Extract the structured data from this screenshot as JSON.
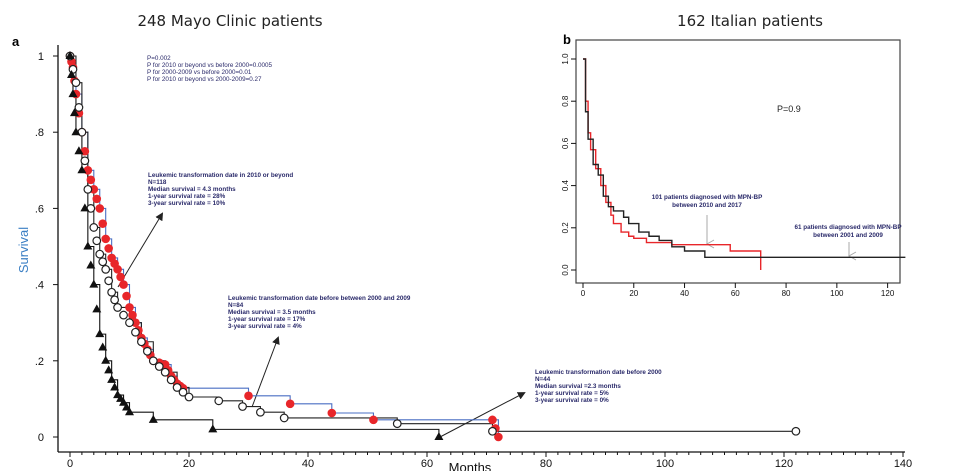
{
  "chart_data": [
    {
      "type": "line",
      "panel_label": "a",
      "title": "248 Mayo Clinic patients",
      "xlabel": "Months",
      "ylabel": "Survival",
      "xlim": [
        0,
        140
      ],
      "ylim": [
        0,
        1
      ],
      "x_ticks": [
        "0",
        "20",
        "40",
        "60",
        "80",
        "100",
        "120",
        "140"
      ],
      "y_ticks": [
        "0",
        ".2",
        ".4",
        ".6",
        ".8",
        "1"
      ],
      "grid": false,
      "pvalues": [
        "P=0.002",
        "P for 2010 or beyond vs before 2000=0.0005",
        "P for 2000-2009 vs before 2000=0.01",
        "P for 2010 or beyond vs 2000-2009=0.27"
      ],
      "annotations": [
        {
          "lines": [
            "Leukemic transformation date in 2010 or beyond",
            "N=118",
            "Median survival = 4.3 months",
            "1-year survival rate = 28%",
            "3-year survival rate = 10%"
          ]
        },
        {
          "lines": [
            "Leukemic transformation date before between 2000 and 2009",
            "N=84",
            "Median survival = 3.5 months",
            "1-year survival rate = 17%",
            "3-year survival rate = 4%"
          ]
        },
        {
          "lines": [
            "Leukemic transformation date before 2000",
            "N=44",
            "Median survival =2.3 months",
            "1-year survival rate = 5%",
            "3-year survival rate = 0%"
          ]
        }
      ],
      "series": [
        {
          "color": "#e8262a",
          "line_color": "#4a6fc4",
          "marker": "filled-circle",
          "x": [
            0,
            0.5,
            1,
            2,
            3,
            4,
            5,
            6,
            7,
            8,
            9,
            10,
            11,
            12,
            13,
            14,
            16,
            17,
            18,
            19,
            30,
            37,
            44,
            51,
            71,
            72
          ],
          "y": [
            1,
            0.97,
            0.9,
            0.8,
            0.7,
            0.65,
            0.6,
            0.52,
            0.47,
            0.44,
            0.4,
            0.34,
            0.3,
            0.26,
            0.23,
            0.2,
            0.19,
            0.16,
            0.14,
            0.128,
            0.108,
            0.087,
            0.063,
            0.045,
            0.045,
            0
          ]
        },
        {
          "color": "#222222",
          "line_color": "#222222",
          "marker": "open-circle",
          "x": [
            0,
            1,
            2,
            3,
            4,
            5,
            6,
            7,
            8,
            10,
            12,
            14,
            16,
            18,
            20,
            25,
            29,
            32,
            36,
            55,
            71,
            122
          ],
          "y": [
            1,
            0.93,
            0.8,
            0.65,
            0.55,
            0.48,
            0.44,
            0.38,
            0.34,
            0.3,
            0.25,
            0.2,
            0.17,
            0.13,
            0.105,
            0.095,
            0.08,
            0.065,
            0.05,
            0.035,
            0.015,
            0.015
          ]
        },
        {
          "color": "#111111",
          "line_color": "#111111",
          "marker": "triangle",
          "x": [
            0,
            0.5,
            1,
            2,
            3,
            4,
            5,
            6,
            7,
            8,
            9,
            10,
            14,
            24,
            62
          ],
          "y": [
            1,
            0.9,
            0.8,
            0.7,
            0.5,
            0.4,
            0.27,
            0.2,
            0.15,
            0.11,
            0.09,
            0.065,
            0.045,
            0.02,
            0
          ]
        }
      ]
    },
    {
      "type": "line",
      "panel_label": "b",
      "title": "162 Italian patients",
      "xlim": [
        0,
        130
      ],
      "ylim": [
        0,
        1
      ],
      "x_ticks": [
        "0",
        "20",
        "40",
        "60",
        "80",
        "100",
        "120"
      ],
      "y_ticks": [
        "0.0",
        "0.2",
        "0.4",
        "0.6",
        "0.8",
        "1.0"
      ],
      "grid": false,
      "pvalue": "P=0.9",
      "annotations": [
        {
          "lines": [
            "101 patients diagnosed with MPN-BP",
            "between 2010 and 2017"
          ]
        },
        {
          "lines": [
            "61 patients diagnosed with MPN-BP",
            "between 2001 and 2009"
          ]
        }
      ],
      "series": [
        {
          "color": "#e8262a",
          "x": [
            0,
            1,
            2,
            3,
            5,
            7,
            9,
            11,
            12,
            15,
            18,
            20,
            25,
            35,
            58,
            70,
            70
          ],
          "y": [
            1,
            0.8,
            0.65,
            0.57,
            0.48,
            0.4,
            0.32,
            0.26,
            0.22,
            0.18,
            0.16,
            0.15,
            0.13,
            0.12,
            0.09,
            0.09,
            0
          ]
        },
        {
          "color": "#222222",
          "x": [
            0,
            1,
            2,
            4,
            6,
            8,
            10,
            12,
            16,
            18,
            22,
            26,
            30,
            35,
            40,
            48,
            127
          ],
          "y": [
            1,
            0.75,
            0.62,
            0.5,
            0.45,
            0.35,
            0.3,
            0.28,
            0.25,
            0.22,
            0.18,
            0.16,
            0.14,
            0.11,
            0.09,
            0.06,
            0.06
          ]
        }
      ]
    }
  ]
}
